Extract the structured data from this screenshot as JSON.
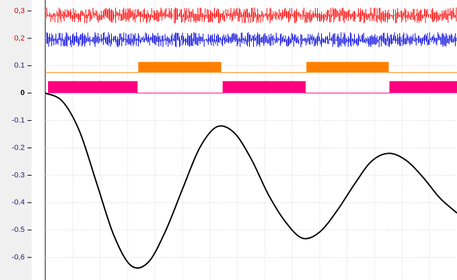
{
  "chart_data": {
    "type": "line",
    "ylim": [
      -0.6825,
      0.34
    ],
    "xlim": [
      0,
      600
    ],
    "yticks": [
      {
        "value": 0.3,
        "label": "0,3"
      },
      {
        "value": 0.2,
        "label": "0,2"
      },
      0.1,
      0,
      -0.1,
      -0.2,
      -0.3,
      -0.4,
      -0.5,
      {
        "value": -0.6,
        "label": "-0,6"
      }
    ],
    "grid": true,
    "series": [
      {
        "type": "noise",
        "color": "#ff0000",
        "range": [
          0.255,
          0.3125
        ]
      },
      {
        "type": "noise",
        "color": "#0000dd",
        "range": [
          0.1675,
          0.2225
        ]
      },
      {
        "type": "step",
        "color": "#ff8000",
        "x": [
          0,
          136,
          136,
          256,
          256,
          381,
          381,
          500,
          500,
          600
        ],
        "values": [
          0.075,
          0.075,
          0.1125,
          0.1125,
          0.075,
          0.075,
          0.1125,
          0.1125,
          0.075,
          0.075
        ]
      },
      {
        "type": "step",
        "color": "#ff0080",
        "x": [
          4,
          134,
          134,
          259,
          259,
          379,
          379,
          502,
          502,
          600
        ],
        "values": [
          0.0425,
          0.0425,
          0,
          0,
          0.0425,
          0.0425,
          0,
          0,
          0.0425,
          0.0425
        ]
      },
      {
        "type": "line",
        "color": "#000000",
        "x": [
          0,
          25,
          50,
          75,
          100,
          125,
          150,
          175,
          200,
          225,
          250,
          275,
          300,
          325,
          350,
          375,
          400,
          425,
          450,
          475,
          500,
          525,
          550,
          575,
          600
        ],
        "values": [
          0,
          -0.03,
          -0.14,
          -0.33,
          -0.52,
          -0.63,
          -0.618,
          -0.505,
          -0.35,
          -0.2,
          -0.123,
          -0.144,
          -0.24,
          -0.37,
          -0.47,
          -0.53,
          -0.507,
          -0.43,
          -0.335,
          -0.25,
          -0.22,
          -0.244,
          -0.306,
          -0.383,
          -0.438
        ]
      }
    ]
  }
}
